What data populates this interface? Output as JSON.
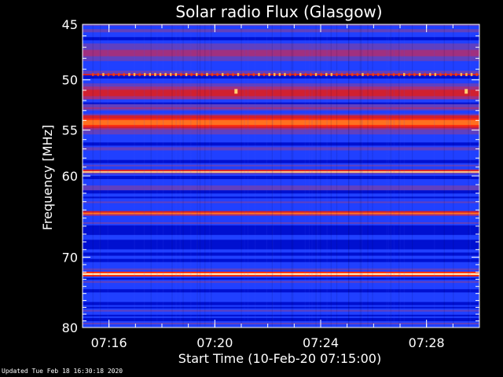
{
  "chart_data": {
    "type": "heatmap",
    "title": "Solar radio Flux (Glasgow)",
    "xlabel": "Start Time (10-Feb-20 07:15:00)",
    "ylabel": "Frequency [MHz]",
    "x_ticks": [
      "07:16",
      "07:20",
      "07:24",
      "07:28"
    ],
    "x_tick_minutes": [
      1,
      5,
      9,
      13
    ],
    "xlim_minutes": [
      0,
      15
    ],
    "y_ticks": [
      45,
      50,
      55,
      60,
      70,
      80
    ],
    "ylim_mhz": [
      45,
      80
    ],
    "scale": "log",
    "y_minor_ticks": [
      46,
      47,
      48,
      49,
      51,
      52,
      53,
      54,
      56,
      57,
      58,
      59,
      61,
      62,
      63,
      64,
      65,
      66,
      67,
      68,
      69,
      71,
      72,
      73,
      74,
      75,
      76,
      77,
      78,
      79
    ],
    "colormap": [
      "#000060",
      "#0010d0",
      "#2040ff",
      "#6040c0",
      "#a03080",
      "#d02030",
      "#ff3010",
      "#ff7020",
      "#ffc080",
      "#fff0c0"
    ],
    "emission_bands": [
      {
        "freq_mhz": 45.1,
        "width_mhz": 0.2,
        "intensity": 0.3
      },
      {
        "freq_mhz": 45.6,
        "width_mhz": 0.3,
        "intensity": 0.3
      },
      {
        "freq_mhz": 47.5,
        "width_mhz": 1.0,
        "intensity": 0.45
      },
      {
        "freq_mhz": 49.5,
        "width_mhz": 0.15,
        "intensity": 0.55
      },
      {
        "freq_mhz": 51.2,
        "width_mhz": 1.0,
        "intensity": 0.55
      },
      {
        "freq_mhz": 52.7,
        "width_mhz": 0.5,
        "intensity": 0.4
      },
      {
        "freq_mhz": 54.2,
        "width_mhz": 0.9,
        "intensity": 0.78
      },
      {
        "freq_mhz": 59.5,
        "width_mhz": 0.2,
        "intensity": 0.92
      },
      {
        "freq_mhz": 64.4,
        "width_mhz": 0.3,
        "intensity": 0.75
      },
      {
        "freq_mhz": 72.3,
        "width_mhz": 0.35,
        "intensity": 1.0
      }
    ],
    "spikes": [
      {
        "time_min": 5.8,
        "freq_mhz": 51.1
      },
      {
        "time_min": 14.5,
        "freq_mhz": 51.1
      }
    ]
  },
  "footer": "Updated Tue Feb 18 16:30:18 2020"
}
